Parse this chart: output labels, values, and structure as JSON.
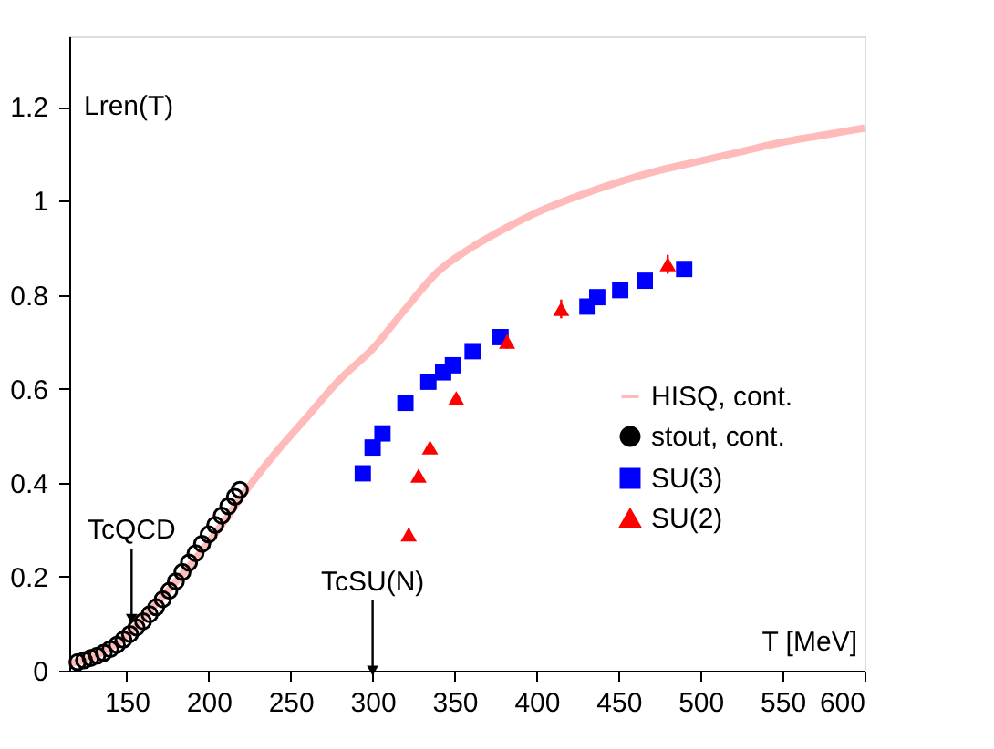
{
  "chart_data": {
    "type": "scatter",
    "ylabel": "Lren(T)",
    "xlabel": "T [MeV]",
    "xlim": [
      115,
      600
    ],
    "xticks": [
      150,
      200,
      250,
      300,
      350,
      400,
      450,
      500,
      550,
      600
    ],
    "ylim": [
      0,
      1.35
    ],
    "yticks": [
      0,
      0.2,
      0.4,
      0.6,
      0.8,
      {
        "value": 1,
        "label": "1"
      },
      1.2
    ],
    "grid": false,
    "legend": "right",
    "annotations": [
      {
        "text": "TcQCD",
        "x": 153,
        "y": 0.11
      },
      {
        "text": "TcSU(N)",
        "x": 300,
        "y": 0.0
      }
    ],
    "series": [
      {
        "name": "HISQ, cont.",
        "type": "line",
        "color": "#ffbaba",
        "x": [
          115,
          130,
          150,
          170,
          190,
          210,
          220,
          240,
          260,
          280,
          300,
          320,
          340,
          360,
          380,
          400,
          425,
          450,
          475,
          500,
          525,
          550,
          575,
          600
        ],
        "values": [
          0.015,
          0.03,
          0.075,
          0.15,
          0.23,
          0.32,
          0.37,
          0.46,
          0.54,
          0.62,
          0.685,
          0.77,
          0.85,
          0.9,
          0.94,
          0.975,
          1.01,
          1.04,
          1.065,
          1.085,
          1.105,
          1.125,
          1.14,
          1.155
        ]
      },
      {
        "name": "stout, cont.",
        "marker": "circle",
        "color": "#000000",
        "x": [
          120,
          124,
          128,
          132,
          136,
          140,
          144,
          148,
          152,
          156,
          160,
          164,
          168,
          172,
          176,
          180,
          184,
          188,
          192,
          196,
          200,
          204,
          208,
          212,
          216,
          219
        ],
        "values": [
          0.018,
          0.022,
          0.027,
          0.032,
          0.038,
          0.046,
          0.055,
          0.066,
          0.078,
          0.092,
          0.105,
          0.12,
          0.135,
          0.152,
          0.17,
          0.19,
          0.21,
          0.23,
          0.25,
          0.27,
          0.29,
          0.31,
          0.33,
          0.35,
          0.37,
          0.385
        ]
      },
      {
        "name": "SU(3)",
        "marker": "square",
        "color": "#0000ff",
        "x": [
          294,
          300,
          306,
          320,
          334,
          343,
          349,
          361,
          378,
          431,
          437,
          451,
          466,
          490
        ],
        "values": [
          0.42,
          0.475,
          0.505,
          0.57,
          0.615,
          0.635,
          0.65,
          0.68,
          0.71,
          0.775,
          0.795,
          0.81,
          0.83,
          0.855
        ]
      },
      {
        "name": "SU(2)",
        "marker": "triangle",
        "color": "#ff0000",
        "x": [
          322,
          328,
          335,
          351,
          382,
          415,
          480
        ],
        "values": [
          0.29,
          0.415,
          0.475,
          0.58,
          0.7,
          0.77,
          0.865
        ],
        "errors": [
          0.012,
          0.008,
          0.008,
          0.01,
          0.015,
          0.02,
          0.02
        ]
      }
    ]
  }
}
